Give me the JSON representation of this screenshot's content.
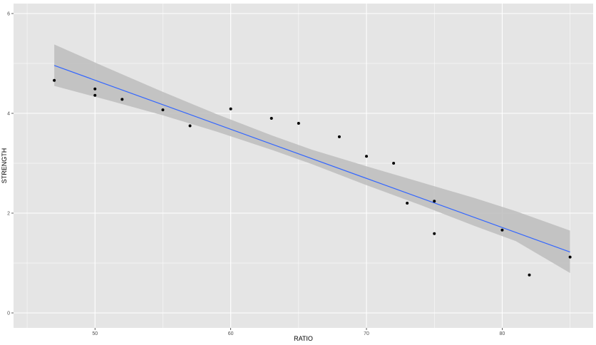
{
  "chart_data": {
    "type": "scatter",
    "xlabel": "RATIO",
    "ylabel": "STRENGTH",
    "xlim": [
      44,
      86.7
    ],
    "ylim": [
      -0.3,
      6.2
    ],
    "x_ticks": [
      50,
      60,
      70,
      80
    ],
    "y_ticks": [
      0,
      2,
      4,
      6
    ],
    "x_tick_labels": [
      "50",
      "60",
      "70",
      "80"
    ],
    "y_tick_labels": [
      "0",
      "2",
      "4",
      "6"
    ],
    "grid": true,
    "legend": "none",
    "points": [
      {
        "x": 47,
        "y": 4.66
      },
      {
        "x": 50,
        "y": 4.49
      },
      {
        "x": 50,
        "y": 4.36
      },
      {
        "x": 52,
        "y": 4.28
      },
      {
        "x": 55,
        "y": 4.07
      },
      {
        "x": 57,
        "y": 3.75
      },
      {
        "x": 60,
        "y": 4.09
      },
      {
        "x": 63,
        "y": 3.9
      },
      {
        "x": 65,
        "y": 3.8
      },
      {
        "x": 68,
        "y": 3.53
      },
      {
        "x": 70,
        "y": 3.14
      },
      {
        "x": 72,
        "y": 3.0
      },
      {
        "x": 73,
        "y": 2.2
      },
      {
        "x": 75,
        "y": 2.24
      },
      {
        "x": 75,
        "y": 1.59
      },
      {
        "x": 80,
        "y": 1.66
      },
      {
        "x": 82,
        "y": 0.76
      },
      {
        "x": 85,
        "y": 1.12
      }
    ],
    "fit_line": {
      "x": [
        47,
        85
      ],
      "y": [
        4.96,
        1.22
      ]
    },
    "confidence_band": {
      "x": [
        47,
        51,
        55,
        59,
        63,
        66,
        70,
        74,
        78,
        81,
        85
      ],
      "upper": [
        5.38,
        4.9,
        4.43,
        3.98,
        3.56,
        3.27,
        2.94,
        2.62,
        2.3,
        2.04,
        1.65
      ],
      "lower": [
        4.55,
        4.26,
        3.96,
        3.63,
        3.27,
        2.98,
        2.56,
        2.16,
        1.74,
        1.44,
        0.8
      ]
    },
    "colors": {
      "panel": "#e5e5e5",
      "grid": "#ffffff",
      "points": "#000000",
      "line": "#3366ff",
      "band": "#bdbdbd"
    }
  }
}
